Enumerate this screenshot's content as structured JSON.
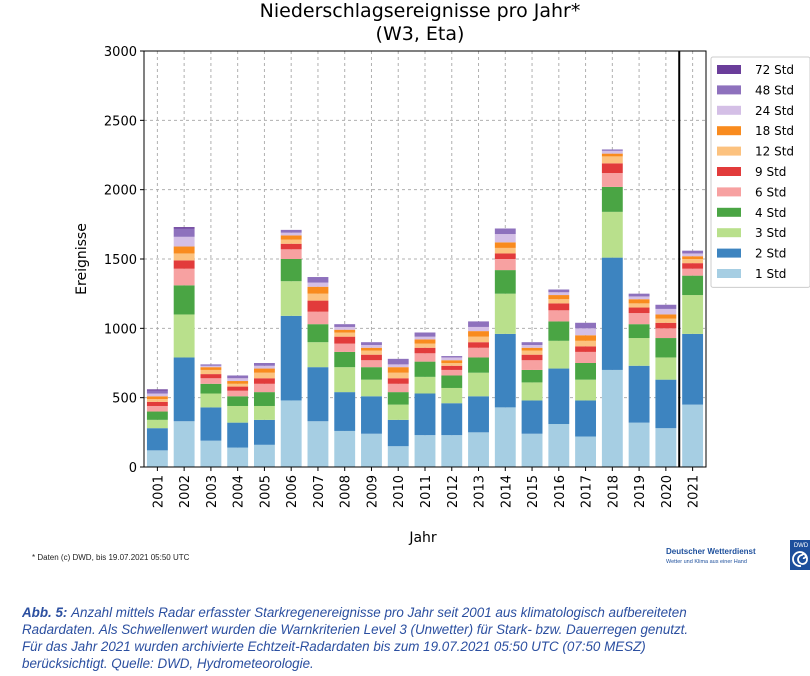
{
  "chart_data": {
    "type": "bar",
    "stacked": true,
    "title": "Niederschlagsereignisse pro Jahr*",
    "subtitle": "(W3, Eta)",
    "xlabel": "Jahr",
    "ylabel": "Ereignisse",
    "ylim": [
      0,
      3000
    ],
    "yticks": [
      0,
      500,
      1000,
      1500,
      2000,
      2500,
      3000
    ],
    "grid": true,
    "legend_position": "right",
    "categories": [
      "2001",
      "2002",
      "2003",
      "2004",
      "2005",
      "2006",
      "2007",
      "2008",
      "2009",
      "2010",
      "2011",
      "2012",
      "2013",
      "2014",
      "2015",
      "2016",
      "2017",
      "2018",
      "2019",
      "2020",
      "2021"
    ],
    "series": [
      {
        "name": "1 Std",
        "color": "#a6cee3",
        "values": [
          120,
          330,
          190,
          140,
          160,
          480,
          330,
          260,
          240,
          150,
          230,
          230,
          250,
          430,
          240,
          310,
          220,
          700,
          320,
          280,
          450
        ]
      },
      {
        "name": "2 Std",
        "color": "#3d84c0",
        "values": [
          160,
          460,
          240,
          180,
          180,
          610,
          390,
          280,
          270,
          190,
          300,
          230,
          260,
          530,
          240,
          400,
          260,
          810,
          410,
          350,
          510
        ]
      },
      {
        "name": "3 Std",
        "color": "#b9e08c",
        "values": [
          60,
          310,
          100,
          120,
          100,
          250,
          180,
          180,
          120,
          110,
          120,
          110,
          170,
          290,
          130,
          200,
          150,
          330,
          200,
          160,
          280
        ]
      },
      {
        "name": "4 Std",
        "color": "#4aa544",
        "values": [
          60,
          210,
          70,
          70,
          100,
          160,
          130,
          110,
          90,
          90,
          110,
          90,
          110,
          170,
          90,
          140,
          120,
          180,
          100,
          140,
          140
        ]
      },
      {
        "name": "6 Std",
        "color": "#f7a1a1",
        "values": [
          40,
          120,
          40,
          40,
          60,
          70,
          90,
          60,
          50,
          60,
          60,
          40,
          70,
          80,
          70,
          80,
          80,
          100,
          80,
          70,
          50
        ]
      },
      {
        "name": "9 Std",
        "color": "#e23b3b",
        "values": [
          30,
          60,
          30,
          30,
          40,
          40,
          80,
          50,
          40,
          40,
          40,
          30,
          40,
          40,
          40,
          50,
          40,
          70,
          40,
          40,
          40
        ]
      },
      {
        "name": "12 Std",
        "color": "#fcc27f",
        "values": [
          20,
          50,
          30,
          20,
          40,
          30,
          50,
          30,
          30,
          40,
          30,
          20,
          40,
          40,
          30,
          30,
          40,
          50,
          30,
          30,
          30
        ]
      },
      {
        "name": "18 Std",
        "color": "#f98b1e",
        "values": [
          20,
          50,
          20,
          20,
          30,
          30,
          50,
          20,
          20,
          40,
          30,
          20,
          40,
          40,
          20,
          30,
          40,
          20,
          30,
          30,
          20
        ]
      },
      {
        "name": "24 Std",
        "color": "#d4bfe6",
        "values": [
          20,
          70,
          10,
          20,
          20,
          20,
          30,
          20,
          20,
          20,
          20,
          20,
          30,
          60,
          20,
          20,
          50,
          20,
          20,
          40,
          20
        ]
      },
      {
        "name": "48 Std",
        "color": "#8e71bd",
        "values": [
          20,
          60,
          10,
          20,
          20,
          20,
          40,
          20,
          20,
          40,
          30,
          10,
          40,
          40,
          20,
          20,
          40,
          10,
          20,
          30,
          20
        ]
      },
      {
        "name": "72 Std",
        "color": "#6a3d9a",
        "values": [
          10,
          10,
          0,
          0,
          0,
          0,
          0,
          0,
          0,
          0,
          0,
          0,
          0,
          0,
          0,
          0,
          0,
          0,
          0,
          0,
          0
        ]
      }
    ],
    "marker_after_category": "2020"
  },
  "footnote": "* Daten (c) DWD, bis 19.07.2021 05:50 UTC",
  "logo": {
    "name": "Deutscher Wetterdienst",
    "slogan": "Wetter und Klima aus einer Hand",
    "abbr": "DWD",
    "color": "#1d4f9c"
  },
  "caption": {
    "lead": "Abb. 5:",
    "line1": "Anzahl mittels Radar erfasster Starkregenereignisse pro Jahr seit 2001 aus klimatologisch aufbereiteten",
    "line2": "Radardaten. Als Schwellenwert wurden die Warnkriterien Level 3 (Unwetter) für Stark- bzw. Dauerregen genutzt.",
    "line3": "Für das Jahr 2021 wurden archivierte Echtzeit-Radardaten bis zum 19.07.2021 05:50 UTC (07:50 MESZ)",
    "line4": "berücksichtigt. Quelle: DWD, Hydrometeorologie."
  }
}
